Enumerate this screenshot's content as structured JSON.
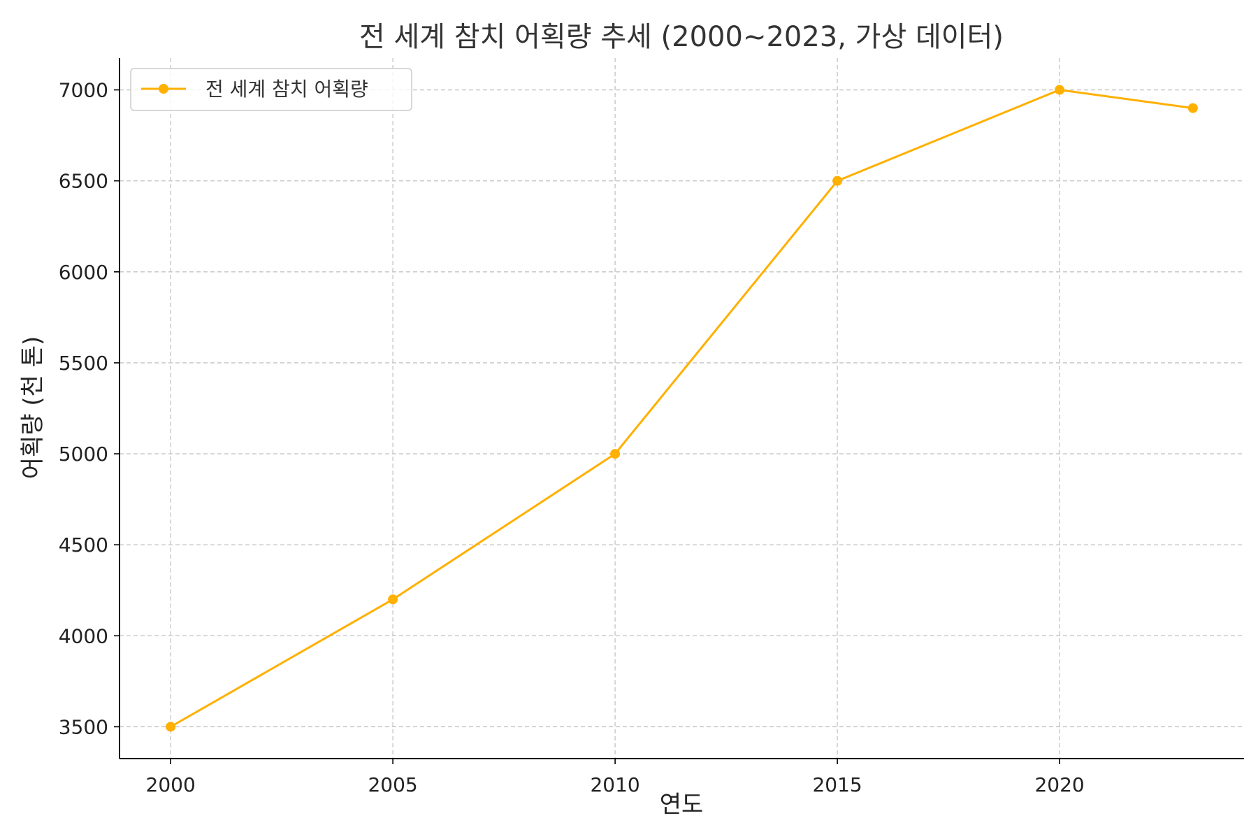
{
  "chart_data": {
    "type": "line",
    "title": "전 세계 참치 어획량 추세 (2000~2023, 가상 데이터)",
    "xlabel": "연도",
    "ylabel": "어획량 (천 톤)",
    "x": [
      2000,
      2005,
      2010,
      2015,
      2020,
      2023
    ],
    "series": [
      {
        "name": "전 세계 참치 어획량",
        "values": [
          3500,
          4200,
          5000,
          6500,
          7000,
          6900
        ],
        "color": "#FFB000",
        "marker": "circle"
      }
    ],
    "xlim": [
      1998.85,
      2024.15
    ],
    "ylim": [
      3325,
      7175
    ],
    "xticks": [
      2000,
      2005,
      2010,
      2015,
      2020
    ],
    "yticks": [
      3500,
      4000,
      4500,
      5000,
      5500,
      6000,
      6500,
      7000
    ],
    "grid": true,
    "legend_position": "top-left"
  }
}
